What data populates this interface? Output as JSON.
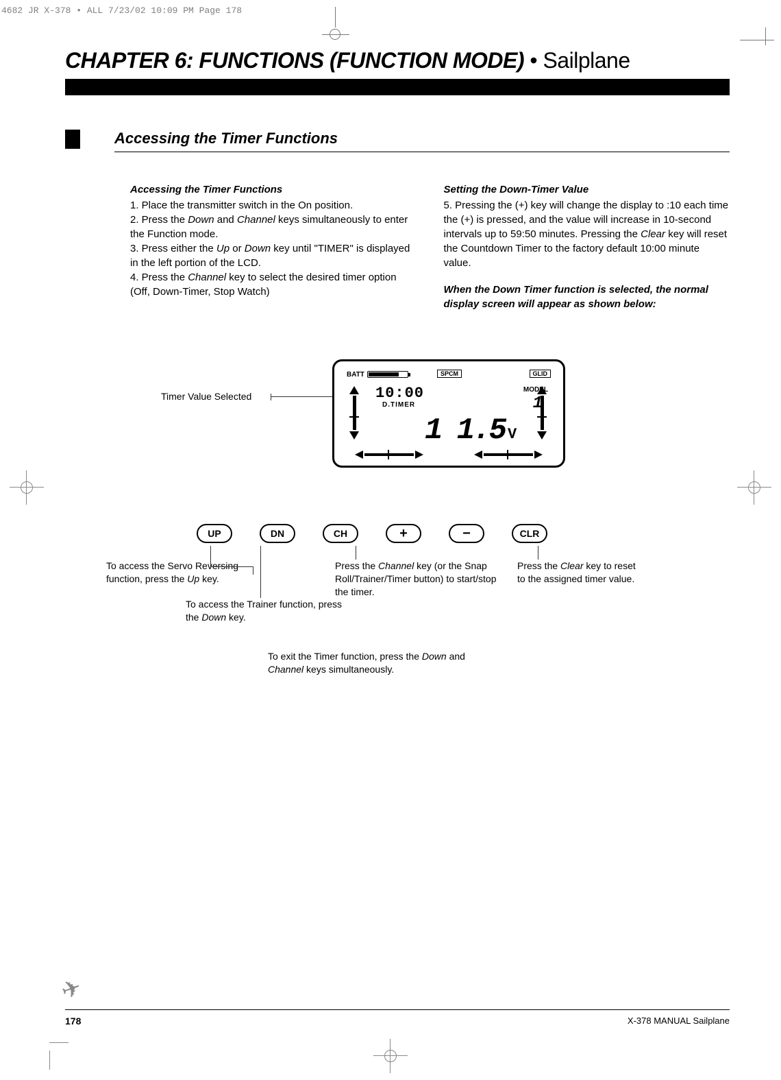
{
  "print_header": "4682 JR X-378 • ALL  7/23/02  10:09 PM  Page 178",
  "chapter": {
    "strong": "CHAPTER 6: FUNCTIONS (FUNCTION MODE)",
    "sep": " • ",
    "light": "Sailplane"
  },
  "section_title": "Accessing the Timer Functions",
  "left_col": {
    "heading": "Accessing the Timer Functions",
    "l1": "1. Place the transmitter switch in the On position.",
    "l2a": "2. Press the ",
    "l2b": "Down",
    "l2c": " and ",
    "l2d": "Channel",
    "l2e": " keys simultaneously to enter the Function mode.",
    "l3a": "3. Press either the ",
    "l3b": "Up",
    "l3c": " or ",
    "l3d": "Down",
    "l3e": " key until \"TIMER\" is displayed in the left portion of the LCD.",
    "l4a": "4. Press the ",
    "l4b": "Channel",
    "l4c": " key to select the desired timer option (Off, Down-Timer, Stop Watch)"
  },
  "right_col": {
    "heading": "Setting the Down-Timer Value",
    "p1a": "5. Pressing the (+) key will change the display to :10 each time the (+) is pressed, and the value will increase in 10-second intervals up to 59:50 minutes. Pressing the ",
    "p1b": "Clear",
    "p1c": " key will reset the Countdown Timer to the factory default 10:00 minute value.",
    "note": "When the Down Timer function is selected, the normal display screen will appear as shown below:"
  },
  "lcd": {
    "label": "Timer Value Selected",
    "batt": "BATT",
    "spcm": "SPCM",
    "glid": "GLID",
    "model": "MODEL",
    "model_num": "1",
    "timer": "10:00",
    "dtimer": "D.TIMER",
    "volt": "1 1.5",
    "v": "V"
  },
  "buttons": {
    "up": "UP",
    "dn": "DN",
    "ch": "CH",
    "clr": "CLR"
  },
  "annots": {
    "up_a": "To access the Servo Reversing function, press the ",
    "up_b": "Up",
    "up_c": " key.",
    "dn_a": "To access the Trainer function, press the ",
    "dn_b": "Down",
    "dn_c": " key.",
    "ch_a": "Press the ",
    "ch_b": "Channel",
    "ch_c": " key (or the Snap Roll/Trainer/Timer button) to start/stop the timer.",
    "clr_a": "Press the ",
    "clr_b": "Clear",
    "clr_c": " key to reset to the assigned timer value.",
    "exit_a": "To exit the Timer function, press the ",
    "exit_b": "Down",
    "exit_c": " and ",
    "exit_d": "Channel",
    "exit_e": " keys simultaneously."
  },
  "footer": {
    "page": "178",
    "right": "X-378 MANUAL  Sailplane"
  }
}
